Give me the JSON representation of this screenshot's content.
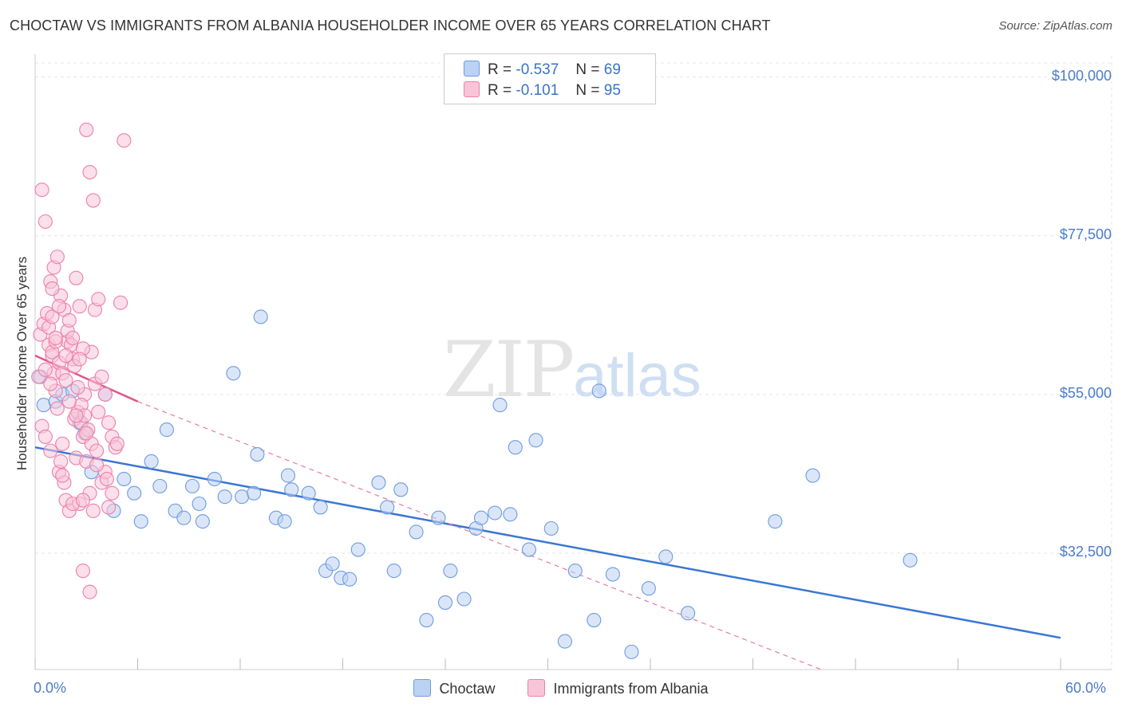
{
  "chart_data": {
    "type": "scatter",
    "title": "CHOCTAW VS IMMIGRANTS FROM ALBANIA HOUSEHOLDER INCOME OVER 65 YEARS CORRELATION CHART",
    "source": "Source: ZipAtlas.com",
    "ylabel": "Householder Income Over 65 years",
    "xlim": [
      0,
      60
    ],
    "ylim": [
      16000,
      103000
    ],
    "x_tick_labels": [
      "0.0%",
      "60.0%"
    ],
    "y_ticks": [
      {
        "value": 100000,
        "label": "$100,000"
      },
      {
        "value": 77500,
        "label": "$77,500"
      },
      {
        "value": 55000,
        "label": "$55,000"
      },
      {
        "value": 32500,
        "label": "$32,500"
      }
    ],
    "watermark": {
      "zip": "ZIP",
      "atlas": "atlas"
    },
    "legend": [
      {
        "r_label": "R =",
        "r": "-0.537",
        "n_label": "N =",
        "n": "69"
      },
      {
        "r_label": "R =",
        "r": " -0.101",
        "n_label": "N =",
        "n": "95"
      }
    ],
    "series": [
      {
        "name": "Choctaw",
        "color": "#6d9be0",
        "fill": "#bcd2f3",
        "trend": {
          "x0": 0,
          "y0": 47500,
          "x1": 60,
          "y1": 20500,
          "solid": true
        },
        "points": [
          [
            0.3,
            57500
          ],
          [
            0.5,
            53500
          ],
          [
            1.2,
            54000
          ],
          [
            1.6,
            55000
          ],
          [
            2.2,
            55500
          ],
          [
            2.6,
            51000
          ],
          [
            2.9,
            49500
          ],
          [
            3.3,
            44000
          ],
          [
            4.1,
            55000
          ],
          [
            4.6,
            38500
          ],
          [
            5.2,
            43000
          ],
          [
            5.8,
            41000
          ],
          [
            6.2,
            37000
          ],
          [
            6.8,
            45500
          ],
          [
            7.3,
            42000
          ],
          [
            7.7,
            50000
          ],
          [
            8.2,
            38500
          ],
          [
            8.7,
            37500
          ],
          [
            9.2,
            42000
          ],
          [
            9.6,
            39500
          ],
          [
            9.8,
            37000
          ],
          [
            10.5,
            43000
          ],
          [
            11.1,
            40500
          ],
          [
            11.6,
            58000
          ],
          [
            12.1,
            40500
          ],
          [
            12.8,
            41000
          ],
          [
            13.0,
            46500
          ],
          [
            13.2,
            66000
          ],
          [
            14.1,
            37500
          ],
          [
            14.6,
            37000
          ],
          [
            14.8,
            43500
          ],
          [
            15.0,
            41500
          ],
          [
            16.0,
            41000
          ],
          [
            16.7,
            39000
          ],
          [
            17.0,
            30000
          ],
          [
            17.4,
            31000
          ],
          [
            17.9,
            29000
          ],
          [
            18.4,
            28800
          ],
          [
            18.9,
            33000
          ],
          [
            20.1,
            42500
          ],
          [
            20.6,
            39000
          ],
          [
            21.0,
            30000
          ],
          [
            21.4,
            41500
          ],
          [
            22.3,
            35500
          ],
          [
            22.9,
            23000
          ],
          [
            23.6,
            37500
          ],
          [
            24.0,
            25500
          ],
          [
            24.3,
            30000
          ],
          [
            25.1,
            26000
          ],
          [
            25.8,
            36000
          ],
          [
            26.1,
            37500
          ],
          [
            26.9,
            38200
          ],
          [
            27.2,
            53500
          ],
          [
            27.8,
            38000
          ],
          [
            28.1,
            47500
          ],
          [
            28.9,
            33000
          ],
          [
            29.3,
            48500
          ],
          [
            30.2,
            36000
          ],
          [
            31.0,
            20000
          ],
          [
            31.6,
            30000
          ],
          [
            32.7,
            23000
          ],
          [
            33.0,
            55500
          ],
          [
            33.8,
            29500
          ],
          [
            34.9,
            18500
          ],
          [
            35.9,
            27500
          ],
          [
            36.9,
            32000
          ],
          [
            38.2,
            24000
          ],
          [
            43.3,
            37000
          ],
          [
            45.5,
            43500
          ],
          [
            51.2,
            31500
          ]
        ]
      },
      {
        "name": "Immigrants from Albania",
        "color": "#ec80a8",
        "fill": "#f8c5d8",
        "trend": {
          "x0": 0,
          "y0": 60500,
          "x1": 6,
          "y1": 54000,
          "dash_x1": 46,
          "dash_y1": 16000
        },
        "points": [
          [
            0.2,
            57500
          ],
          [
            0.3,
            63500
          ],
          [
            0.4,
            50500
          ],
          [
            0.6,
            49000
          ],
          [
            0.8,
            62000
          ],
          [
            0.9,
            47000
          ],
          [
            1.0,
            60500
          ],
          [
            1.1,
            58000
          ],
          [
            1.2,
            55500
          ],
          [
            1.3,
            53000
          ],
          [
            1.4,
            44000
          ],
          [
            1.5,
            45500
          ],
          [
            1.6,
            48000
          ],
          [
            1.7,
            42500
          ],
          [
            1.8,
            40000
          ],
          [
            1.9,
            62500
          ],
          [
            2.0,
            38500
          ],
          [
            2.2,
            60000
          ],
          [
            2.3,
            51500
          ],
          [
            2.4,
            46000
          ],
          [
            2.5,
            52500
          ],
          [
            2.6,
            39500
          ],
          [
            2.7,
            51000
          ],
          [
            2.8,
            49000
          ],
          [
            2.9,
            55000
          ],
          [
            3.0,
            45500
          ],
          [
            3.2,
            41000
          ],
          [
            3.3,
            48000
          ],
          [
            3.5,
            56500
          ],
          [
            3.6,
            47000
          ],
          [
            3.7,
            52500
          ],
          [
            3.9,
            42500
          ],
          [
            4.1,
            44000
          ],
          [
            4.3,
            39000
          ],
          [
            4.5,
            41000
          ],
          [
            0.5,
            65000
          ],
          [
            0.7,
            66500
          ],
          [
            0.9,
            71000
          ],
          [
            1.1,
            73000
          ],
          [
            1.3,
            74500
          ],
          [
            1.5,
            69000
          ],
          [
            1.7,
            67000
          ],
          [
            1.9,
            64000
          ],
          [
            2.1,
            62000
          ],
          [
            2.3,
            59000
          ],
          [
            2.5,
            56000
          ],
          [
            2.7,
            53500
          ],
          [
            2.9,
            52000
          ],
          [
            3.1,
            50000
          ],
          [
            3.3,
            61000
          ],
          [
            3.5,
            67000
          ],
          [
            3.7,
            68500
          ],
          [
            3.9,
            57500
          ],
          [
            4.1,
            55000
          ],
          [
            4.3,
            51000
          ],
          [
            4.5,
            49000
          ],
          [
            4.7,
            47500
          ],
          [
            0.4,
            84000
          ],
          [
            0.6,
            79500
          ],
          [
            1.0,
            61000
          ],
          [
            1.4,
            59500
          ],
          [
            1.6,
            58000
          ],
          [
            1.8,
            60500
          ],
          [
            2.0,
            65500
          ],
          [
            2.2,
            63000
          ],
          [
            2.4,
            71500
          ],
          [
            2.6,
            67500
          ],
          [
            2.8,
            61500
          ],
          [
            3.0,
            92500
          ],
          [
            3.2,
            86500
          ],
          [
            3.4,
            82500
          ],
          [
            5.2,
            91000
          ],
          [
            5.0,
            68000
          ],
          [
            1.2,
            62500
          ],
          [
            0.8,
            64500
          ],
          [
            2.0,
            54000
          ],
          [
            2.4,
            52000
          ],
          [
            3.0,
            49500
          ],
          [
            3.6,
            45000
          ],
          [
            4.2,
            43000
          ],
          [
            4.8,
            48000
          ],
          [
            1.6,
            43500
          ],
          [
            2.2,
            39500
          ],
          [
            2.8,
            40000
          ],
          [
            3.4,
            38500
          ],
          [
            1.0,
            66000
          ],
          [
            1.4,
            67500
          ],
          [
            0.6,
            58500
          ],
          [
            0.9,
            56500
          ],
          [
            1.8,
            57000
          ],
          [
            2.6,
            60000
          ],
          [
            3.2,
            27000
          ],
          [
            2.8,
            30000
          ],
          [
            1.2,
            63000
          ],
          [
            1.0,
            70000
          ]
        ]
      }
    ]
  }
}
